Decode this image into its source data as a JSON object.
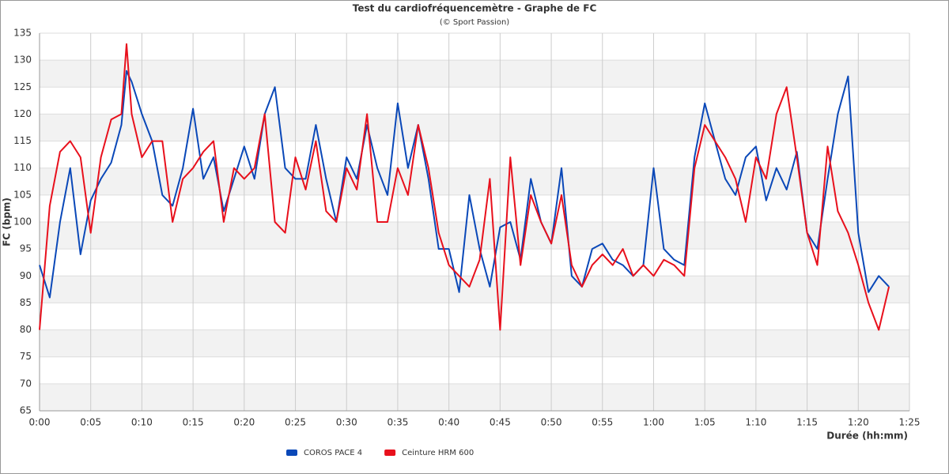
{
  "chart_data": {
    "type": "line",
    "title": "Test du cardiofréquencemètre - Graphe de FC",
    "subtitle": "(© Sport Passion)",
    "x_label": "Durée (hh:mm)",
    "y_label": "FC (bpm)",
    "x": [
      0,
      1,
      2,
      3,
      4,
      5,
      6,
      7,
      8,
      8.5,
      9,
      10,
      11,
      12,
      13,
      14,
      15,
      16,
      17,
      18,
      19,
      20,
      21,
      22,
      23,
      24,
      25,
      26,
      27,
      28,
      29,
      30,
      31,
      32,
      33,
      34,
      35,
      36,
      37,
      38,
      39,
      40,
      41,
      42,
      43,
      44,
      45,
      46,
      47,
      48,
      49,
      50,
      51,
      52,
      53,
      54,
      55,
      56,
      57,
      58,
      59,
      60,
      61,
      62,
      63,
      64,
      65,
      66,
      67,
      68,
      69,
      70,
      71,
      72,
      73,
      74,
      75,
      76,
      77,
      78,
      79,
      80,
      81,
      82,
      83
    ],
    "series": [
      {
        "name": "COROS PACE 4",
        "color": "#0a48b8",
        "values": [
          92,
          86,
          100,
          110,
          94,
          104,
          108,
          111,
          118,
          128,
          126,
          120,
          115,
          105,
          103,
          110,
          121,
          108,
          112,
          102,
          108,
          114,
          108,
          120,
          125,
          110,
          108,
          108,
          118,
          108,
          100,
          112,
          108,
          118,
          110,
          105,
          122,
          110,
          118,
          108,
          95,
          95,
          87,
          105,
          95,
          88,
          99,
          100,
          93,
          108,
          100,
          96,
          110,
          90,
          88,
          95,
          96,
          93,
          92,
          90,
          92,
          110,
          95,
          93,
          92,
          112,
          122,
          115,
          108,
          105,
          112,
          114,
          104,
          110,
          106,
          113,
          98,
          95,
          108,
          120,
          127,
          98,
          87,
          90,
          88
        ]
      },
      {
        "name": "Ceinture HRM 600",
        "color": "#e8101c",
        "values": [
          80,
          103,
          113,
          115,
          112,
          98,
          112,
          119,
          120,
          133,
          120,
          112,
          115,
          115,
          100,
          108,
          110,
          113,
          115,
          100,
          110,
          108,
          110,
          120,
          100,
          98,
          112,
          106,
          115,
          102,
          100,
          110,
          106,
          120,
          100,
          100,
          110,
          105,
          118,
          110,
          98,
          92,
          90,
          88,
          93,
          108,
          80,
          112,
          92,
          105,
          100,
          96,
          105,
          92,
          88,
          92,
          94,
          92,
          95,
          90,
          92,
          90,
          93,
          92,
          90,
          110,
          118,
          115,
          112,
          108,
          100,
          112,
          108,
          120,
          125,
          112,
          98,
          92,
          114,
          102,
          98,
          92,
          85,
          80,
          88
        ]
      }
    ],
    "xlim": [
      0,
      85
    ],
    "xticks": [
      {
        "value": 0,
        "label": "0:00"
      },
      {
        "value": 5,
        "label": "0:05"
      },
      {
        "value": 10,
        "label": "0:10"
      },
      {
        "value": 15,
        "label": "0:15"
      },
      {
        "value": 20,
        "label": "0:20"
      },
      {
        "value": 25,
        "label": "0:25"
      },
      {
        "value": 30,
        "label": "0:30"
      },
      {
        "value": 35,
        "label": "0:35"
      },
      {
        "value": 40,
        "label": "0:40"
      },
      {
        "value": 45,
        "label": "0:45"
      },
      {
        "value": 50,
        "label": "0:50"
      },
      {
        "value": 55,
        "label": "0:55"
      },
      {
        "value": 60,
        "label": "1:00"
      },
      {
        "value": 65,
        "label": "1:05"
      },
      {
        "value": 70,
        "label": "1:10"
      },
      {
        "value": 75,
        "label": "1:15"
      },
      {
        "value": 80,
        "label": "1:20"
      },
      {
        "value": 85,
        "label": "1:25"
      }
    ],
    "ylim": [
      65,
      135
    ],
    "yticks": [
      65,
      70,
      75,
      80,
      85,
      90,
      95,
      100,
      105,
      110,
      115,
      120,
      125,
      130,
      135
    ],
    "grid": true,
    "legend": "bottom"
  }
}
